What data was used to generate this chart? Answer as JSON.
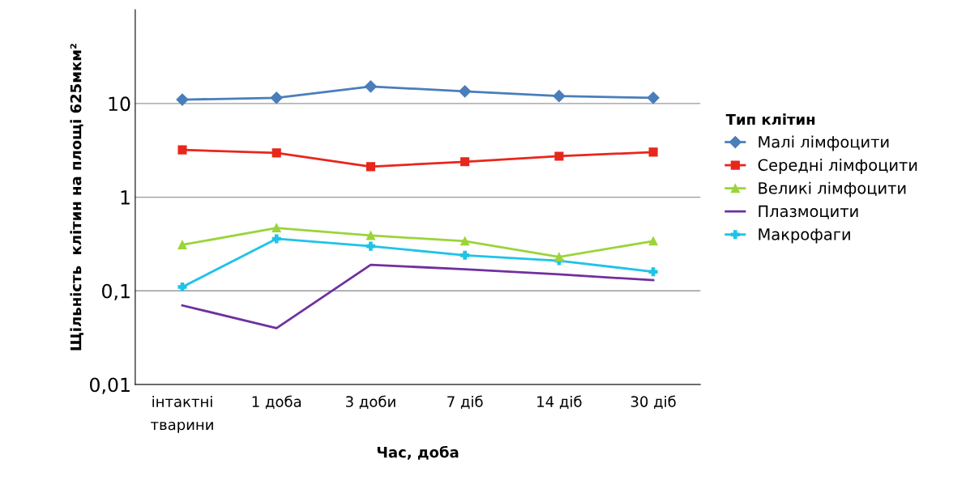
{
  "chart_data": {
    "type": "line",
    "xlabel": "Час, доба",
    "ylabel": "Щільність  клітин на площі 625мкм²",
    "legend_title": "Тип клітин",
    "categories": [
      "інтактні\nтварини",
      "1 доба",
      "3 доби",
      "7 діб",
      "14 діб",
      "30 діб"
    ],
    "series": [
      {
        "name": "Малі лімфоцити",
        "color": "#4a7ebb",
        "marker": "diamond",
        "values": [
          11.0,
          11.5,
          15.2,
          13.5,
          12,
          11.5
        ]
      },
      {
        "name": "Середні лімфоцити",
        "color": "#e8261c",
        "marker": "square",
        "values": [
          3.2,
          2.97,
          2.12,
          2.39,
          2.74,
          3.03
        ]
      },
      {
        "name": "Великі лімфоцити",
        "color": "#9bd43a",
        "marker": "triangle",
        "values": [
          0.31,
          0.47,
          0.39,
          0.34,
          0.23,
          0.34
        ]
      },
      {
        "name": "Плазмоцити",
        "color": "#7030a0",
        "marker": "none",
        "values": [
          0.07,
          0.04,
          0.19,
          0.17,
          0.15,
          0.13
        ]
      },
      {
        "name": "Макрофаги",
        "color": "#1fc3e8",
        "marker": "cross",
        "values": [
          0.11,
          0.36,
          0.3,
          0.24,
          0.21,
          0.16
        ]
      }
    ],
    "log": true,
    "ylim": [
      0.01,
      100
    ],
    "yticks": [
      {
        "value": 0.01,
        "label": "0,01"
      },
      {
        "value": 0.1,
        "label": "0,1"
      },
      1,
      10
    ],
    "grid": "y",
    "legend": "right"
  }
}
